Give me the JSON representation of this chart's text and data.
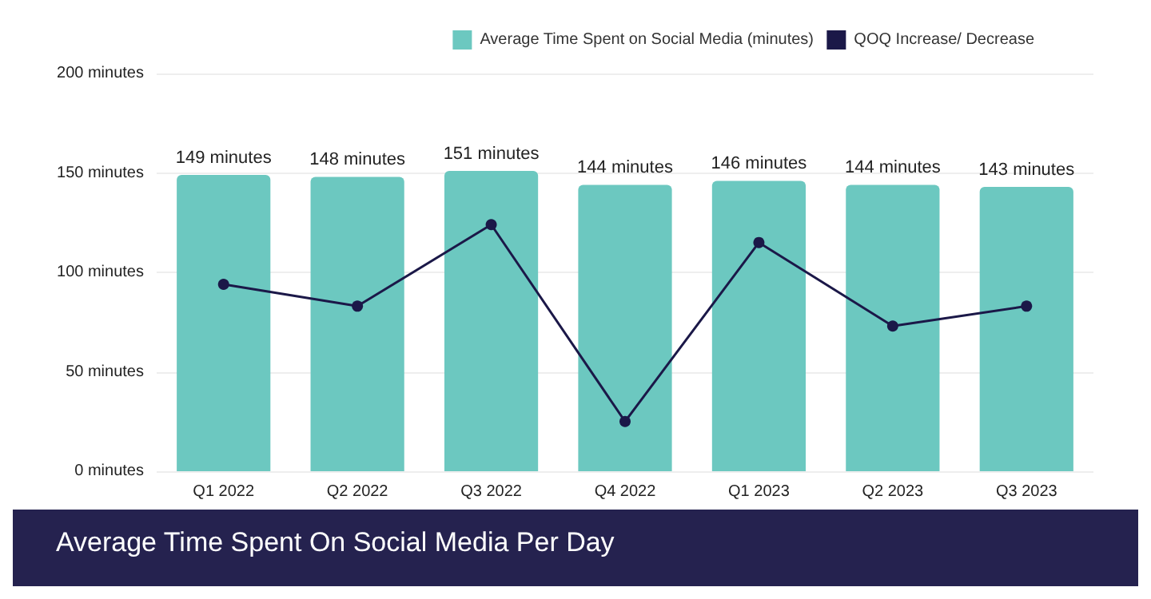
{
  "chart_data": {
    "type": "bar",
    "title": "Average Time Spent On Social Media Per Day",
    "categories": [
      "Q1 2022",
      "Q2 2022",
      "Q3 2022",
      "Q4 2022",
      "Q1 2023",
      "Q2 2023",
      "Q3 2023"
    ],
    "series": [
      {
        "name": "Average Time Spent on Social Media (minutes)",
        "color": "#6cc8c0",
        "values": [
          149,
          148,
          151,
          144,
          146,
          144,
          143
        ],
        "value_labels": [
          "149 minutes",
          "148 minutes",
          "151 minutes",
          "144 minutes",
          "146 minutes",
          "144 minutes",
          "143 minutes"
        ]
      },
      {
        "name": "QOQ Increase/ Decrease",
        "type": "line",
        "color": "#1b1848",
        "values": [
          94,
          83,
          124,
          25,
          115,
          73,
          83
        ],
        "marker": "circle"
      }
    ],
    "ylim": [
      0,
      200
    ],
    "yticks": [
      {
        "value": 0,
        "label": "0 minutes"
      },
      {
        "value": 50,
        "label": "50 minutes"
      },
      {
        "value": 100,
        "label": "100 minutes"
      },
      {
        "value": 150,
        "label": "150 minutes"
      },
      {
        "value": 200,
        "label": "200 minutes"
      }
    ],
    "grid": "y",
    "legend": "top right"
  }
}
